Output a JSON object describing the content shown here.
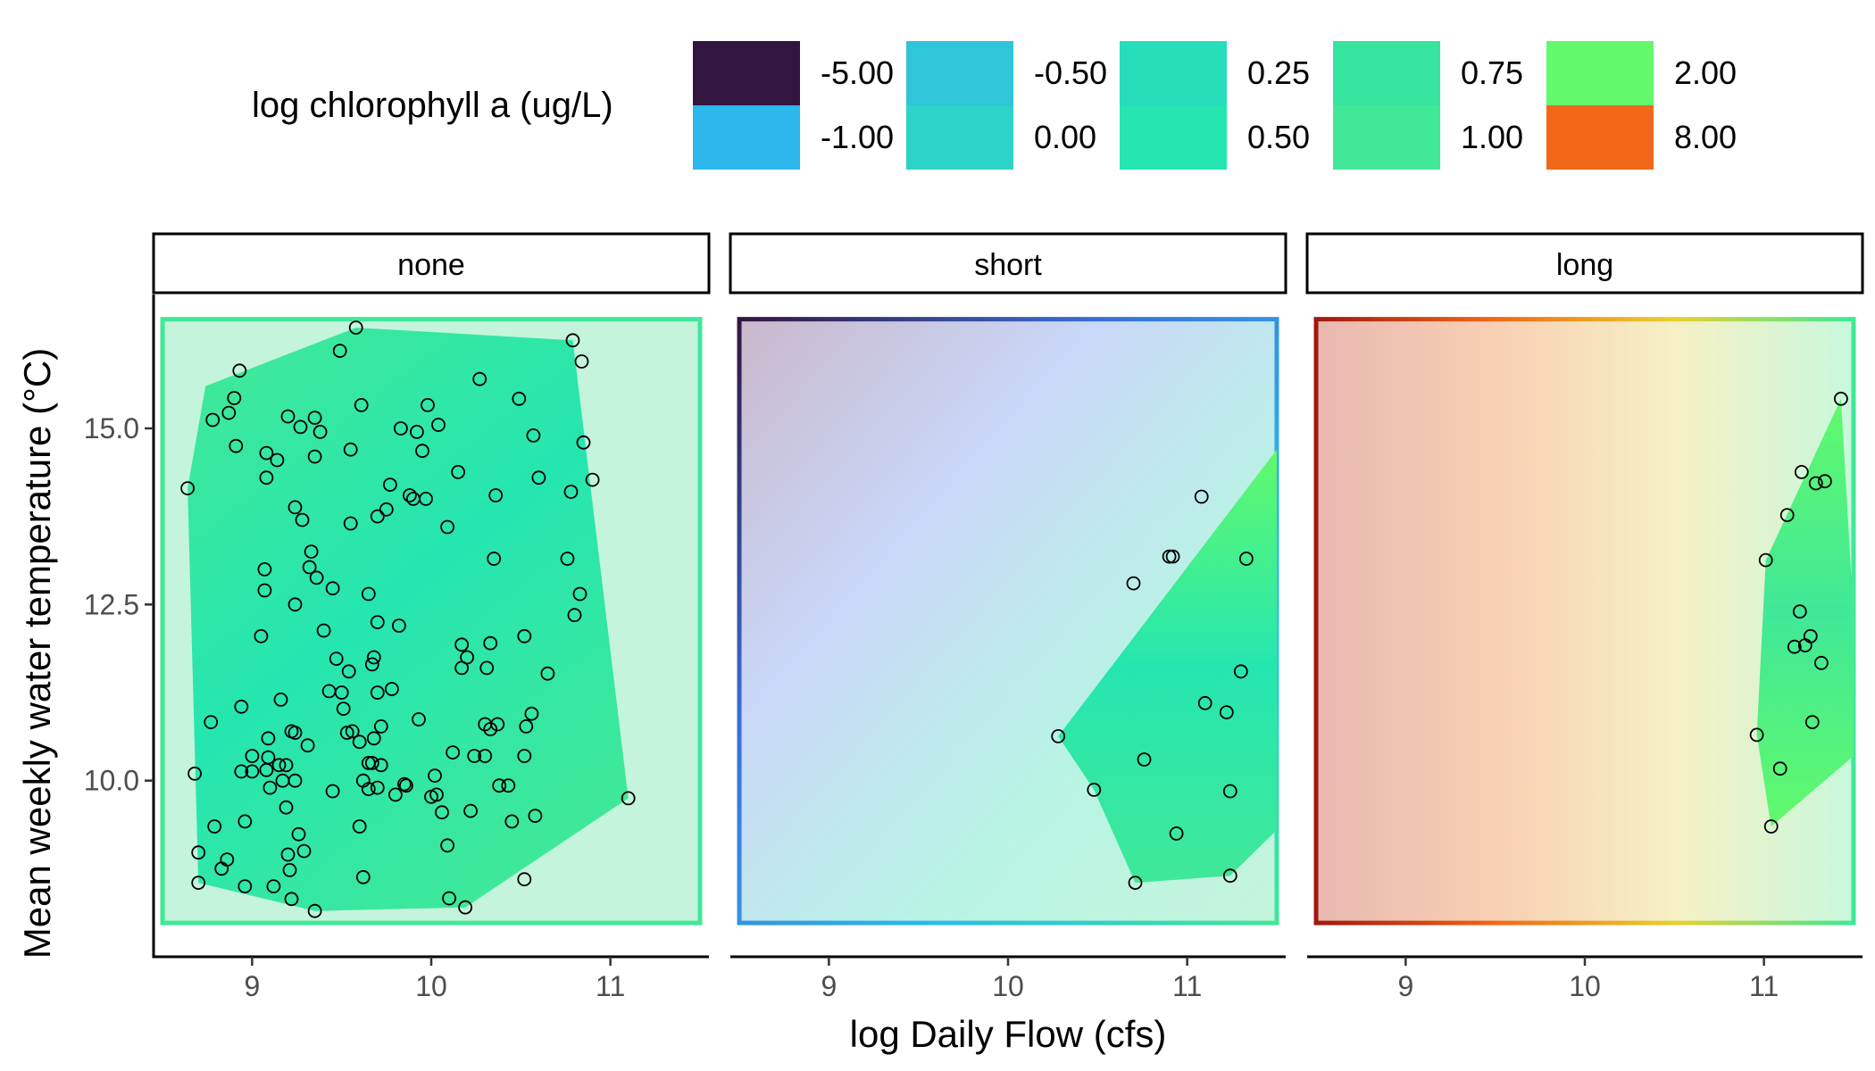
{
  "chart_data": {
    "type": "scatter",
    "xlabel": "log Daily Flow (cfs)",
    "ylabel": "Mean weekly water temperature (°C)",
    "x_ticks": [
      9,
      10,
      11
    ],
    "x_tick_labels": [
      "9",
      "10",
      "11"
    ],
    "y_ticks": [
      10.0,
      12.5,
      15.0
    ],
    "y_tick_labels": [
      "10.0",
      "12.5",
      "15.0"
    ],
    "xlim": [
      8.45,
      11.55
    ],
    "ylim": [
      7.5,
      16.9
    ],
    "legend": {
      "title": "log chlorophyll a (ug/L)",
      "placement": "top",
      "entries": [
        {
          "label": "-5.00",
          "color": "#33163f"
        },
        {
          "label": "-1.00",
          "color": "#2cb8ec"
        },
        {
          "label": "-0.50",
          "color": "#2ec6d8"
        },
        {
          "label": "0.00",
          "color": "#2dd3c6"
        },
        {
          "label": "0.25",
          "color": "#26deba"
        },
        {
          "label": "0.50",
          "color": "#25e6b0"
        },
        {
          "label": "0.75",
          "color": "#36e49e"
        },
        {
          "label": "1.00",
          "color": "#40e898"
        },
        {
          "label": "2.00",
          "color": "#62f96c"
        },
        {
          "label": "8.00",
          "color": "#f06818"
        }
      ]
    },
    "facets": [
      {
        "label": "none",
        "points": [
          [
            8.64,
            14.15
          ],
          [
            8.68,
            10.1
          ],
          [
            8.7,
            8.98
          ],
          [
            8.7,
            8.55
          ],
          [
            8.77,
            10.83
          ],
          [
            8.78,
            15.12
          ],
          [
            8.79,
            9.35
          ],
          [
            8.83,
            8.75
          ],
          [
            8.86,
            8.88
          ],
          [
            8.87,
            15.22
          ],
          [
            8.9,
            15.43
          ],
          [
            8.91,
            14.75
          ],
          [
            8.93,
            15.82
          ],
          [
            8.94,
            11.05
          ],
          [
            8.94,
            10.13
          ],
          [
            8.96,
            9.42
          ],
          [
            8.96,
            8.5
          ],
          [
            9.0,
            10.13
          ],
          [
            9.0,
            10.35
          ],
          [
            9.05,
            12.05
          ],
          [
            9.07,
            12.7
          ],
          [
            9.07,
            13.0
          ],
          [
            9.08,
            14.3
          ],
          [
            9.08,
            14.65
          ],
          [
            9.08,
            10.15
          ],
          [
            9.09,
            10.6
          ],
          [
            9.09,
            10.33
          ],
          [
            9.1,
            9.9
          ],
          [
            9.12,
            8.5
          ],
          [
            9.14,
            14.55
          ],
          [
            9.15,
            10.22
          ],
          [
            9.16,
            11.15
          ],
          [
            9.17,
            10.0
          ],
          [
            9.19,
            9.62
          ],
          [
            9.19,
            10.22
          ],
          [
            9.2,
            8.95
          ],
          [
            9.21,
            8.73
          ],
          [
            9.2,
            15.17
          ],
          [
            9.22,
            10.7
          ],
          [
            9.22,
            8.32
          ],
          [
            9.24,
            13.88
          ],
          [
            9.24,
            12.5
          ],
          [
            9.24,
            10.68
          ],
          [
            9.24,
            10.0
          ],
          [
            9.26,
            9.24
          ],
          [
            9.27,
            15.02
          ],
          [
            9.28,
            13.7
          ],
          [
            9.29,
            9.0
          ],
          [
            9.31,
            10.5
          ],
          [
            9.32,
            13.03
          ],
          [
            9.33,
            13.25
          ],
          [
            9.35,
            15.15
          ],
          [
            9.35,
            14.6
          ],
          [
            9.35,
            8.15
          ],
          [
            9.36,
            12.88
          ],
          [
            9.38,
            14.95
          ],
          [
            9.4,
            12.13
          ],
          [
            9.43,
            11.27
          ],
          [
            9.45,
            12.73
          ],
          [
            9.45,
            9.85
          ],
          [
            9.47,
            11.73
          ],
          [
            9.49,
            16.1
          ],
          [
            9.5,
            11.25
          ],
          [
            9.51,
            11.02
          ],
          [
            9.53,
            10.68
          ],
          [
            9.54,
            11.55
          ],
          [
            9.55,
            14.7
          ],
          [
            9.55,
            13.65
          ],
          [
            9.56,
            10.7
          ],
          [
            9.58,
            16.43
          ],
          [
            9.6,
            10.55
          ],
          [
            9.61,
            15.33
          ],
          [
            9.6,
            9.35
          ],
          [
            9.62,
            10.0
          ],
          [
            9.62,
            8.63
          ],
          [
            9.65,
            12.65
          ],
          [
            9.65,
            10.25
          ],
          [
            9.65,
            9.88
          ],
          [
            9.67,
            11.65
          ],
          [
            9.67,
            10.25
          ],
          [
            9.68,
            11.75
          ],
          [
            9.68,
            10.6
          ],
          [
            9.7,
            13.75
          ],
          [
            9.7,
            12.25
          ],
          [
            9.7,
            11.25
          ],
          [
            9.7,
            9.9
          ],
          [
            9.72,
            10.77
          ],
          [
            9.72,
            10.22
          ],
          [
            9.75,
            13.85
          ],
          [
            9.77,
            14.2
          ],
          [
            9.78,
            11.3
          ],
          [
            9.8,
            9.8
          ],
          [
            9.82,
            12.2
          ],
          [
            9.83,
            15.0
          ],
          [
            9.85,
            9.95
          ],
          [
            9.86,
            9.93
          ],
          [
            9.88,
            14.05
          ],
          [
            9.9,
            14.0
          ],
          [
            9.92,
            14.95
          ],
          [
            9.93,
            10.87
          ],
          [
            9.95,
            14.68
          ],
          [
            9.97,
            14.0
          ],
          [
            9.98,
            15.33
          ],
          [
            10.0,
            9.77
          ],
          [
            10.02,
            10.07
          ],
          [
            10.03,
            9.8
          ],
          [
            10.04,
            15.05
          ],
          [
            10.06,
            9.55
          ],
          [
            10.09,
            13.6
          ],
          [
            10.09,
            9.08
          ],
          [
            10.1,
            8.33
          ],
          [
            10.12,
            10.4
          ],
          [
            10.15,
            14.38
          ],
          [
            10.17,
            11.6
          ],
          [
            10.17,
            11.93
          ],
          [
            10.19,
            8.2
          ],
          [
            10.2,
            11.75
          ],
          [
            10.22,
            9.57
          ],
          [
            10.24,
            10.35
          ],
          [
            10.27,
            15.7
          ],
          [
            10.3,
            10.35
          ],
          [
            10.31,
            11.6
          ],
          [
            10.3,
            10.8
          ],
          [
            10.33,
            11.95
          ],
          [
            10.33,
            10.73
          ],
          [
            10.35,
            13.15
          ],
          [
            10.36,
            14.05
          ],
          [
            10.37,
            10.8
          ],
          [
            10.38,
            9.93
          ],
          [
            10.43,
            9.93
          ],
          [
            10.45,
            9.42
          ],
          [
            10.49,
            15.42
          ],
          [
            10.52,
            12.05
          ],
          [
            10.52,
            10.35
          ],
          [
            10.52,
            8.6
          ],
          [
            10.53,
            10.77
          ],
          [
            10.56,
            10.95
          ],
          [
            10.57,
            14.9
          ],
          [
            10.58,
            9.5
          ],
          [
            10.6,
            14.3
          ],
          [
            10.65,
            11.52
          ],
          [
            10.76,
            13.15
          ],
          [
            10.78,
            14.1
          ],
          [
            10.79,
            16.25
          ],
          [
            10.8,
            12.35
          ],
          [
            10.83,
            12.65
          ],
          [
            10.84,
            15.95
          ],
          [
            10.85,
            14.8
          ],
          [
            10.9,
            14.27
          ],
          [
            11.1,
            9.75
          ]
        ],
        "hull": [
          [
            8.64,
            14.15
          ],
          [
            8.74,
            15.6
          ],
          [
            9.58,
            16.43
          ],
          [
            10.79,
            16.25
          ],
          [
            11.1,
            9.75
          ],
          [
            10.19,
            8.2
          ],
          [
            9.35,
            8.15
          ],
          [
            8.7,
            8.55
          ]
        ],
        "gradient_direction": "diagonal",
        "gradient_colors": [
          "#40e898",
          "#25e6b0",
          "#40e898"
        ]
      },
      {
        "label": "short",
        "points": [
          [
            10.28,
            10.63
          ],
          [
            10.48,
            9.87
          ],
          [
            10.7,
            12.8
          ],
          [
            10.71,
            8.55
          ],
          [
            10.76,
            10.3
          ],
          [
            10.9,
            13.18
          ],
          [
            10.92,
            13.18
          ],
          [
            10.94,
            9.25
          ],
          [
            11.08,
            14.03
          ],
          [
            11.1,
            11.1
          ],
          [
            11.22,
            10.97
          ],
          [
            11.24,
            8.65
          ],
          [
            11.24,
            9.85
          ],
          [
            11.3,
            11.55
          ],
          [
            11.33,
            13.15
          ]
        ],
        "hull": [
          [
            10.28,
            10.63
          ],
          [
            11.55,
            14.7
          ],
          [
            11.55,
            9.3
          ],
          [
            11.24,
            8.65
          ],
          [
            10.71,
            8.55
          ],
          [
            10.48,
            9.87
          ]
        ],
        "gradient_direction": "vertical",
        "gradient_colors": [
          "#62f96c",
          "#25e6b0",
          "#40e898"
        ],
        "background_colors": [
          "#c9b8cc",
          "#c9d7f8",
          "#b8f4e4",
          "#c4f4dc"
        ],
        "border_colors": [
          "#33163f",
          "#3a6fd6",
          "#2cb8ec",
          "#40e898"
        ]
      },
      {
        "label": "long",
        "points": [
          [
            10.96,
            10.65
          ],
          [
            11.01,
            13.13
          ],
          [
            11.04,
            9.35
          ],
          [
            11.09,
            10.17
          ],
          [
            11.13,
            13.77
          ],
          [
            11.17,
            11.9
          ],
          [
            11.2,
            12.4
          ],
          [
            11.21,
            14.38
          ],
          [
            11.23,
            11.92
          ],
          [
            11.26,
            12.05
          ],
          [
            11.27,
            10.83
          ],
          [
            11.29,
            14.22
          ],
          [
            11.32,
            11.67
          ],
          [
            11.34,
            14.25
          ],
          [
            11.43,
            15.42
          ]
        ],
        "hull": [
          [
            11.43,
            15.42
          ],
          [
            11.55,
            12.35
          ],
          [
            11.55,
            10.35
          ],
          [
            11.04,
            9.35
          ],
          [
            10.96,
            10.65
          ],
          [
            11.01,
            13.13
          ]
        ],
        "gradient_direction": "vertical",
        "gradient_colors": [
          "#62f96c",
          "#40e898",
          "#62f96c"
        ],
        "background_colors": [
          "#e8b8b0",
          "#f8cfb3",
          "#f6f0c4",
          "#c8f8dc"
        ],
        "border_colors": [
          "#a01810",
          "#f06818",
          "#e8d030",
          "#40e898"
        ]
      }
    ]
  }
}
